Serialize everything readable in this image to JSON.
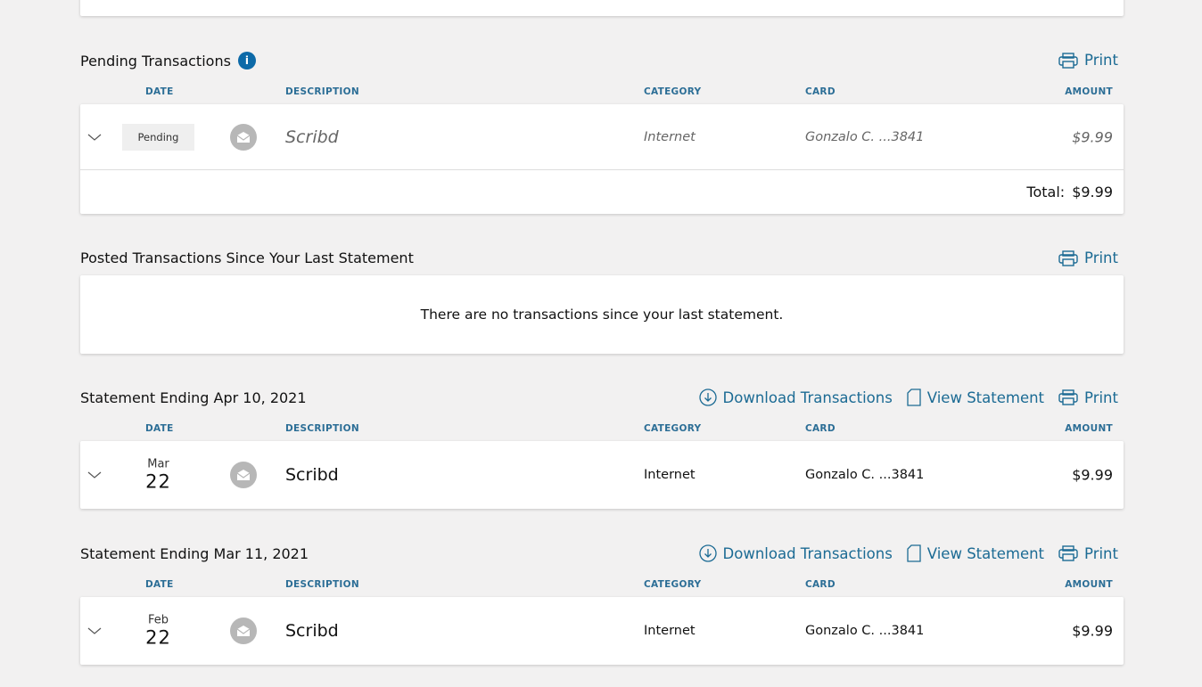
{
  "columns": {
    "date": "DATE",
    "description": "DESCRIPTION",
    "category": "CATEGORY",
    "card": "CARD",
    "amount": "AMOUNT"
  },
  "actions": {
    "print": "Print",
    "download": "Download Transactions",
    "view": "View Statement"
  },
  "pending": {
    "title": "Pending Transactions",
    "info_icon": "i",
    "row": {
      "status": "Pending",
      "description": "Scribd",
      "category": "Internet",
      "card": "Gonzalo C. ...3841",
      "amount": "$9.99"
    },
    "total_label": "Total:",
    "total_value": "$9.99"
  },
  "posted": {
    "title": "Posted Transactions Since Your Last Statement",
    "empty": "There are no transactions since your last statement."
  },
  "statements": [
    {
      "title": "Statement Ending Apr 10, 2021",
      "row": {
        "month": "Mar",
        "day": "22",
        "description": "Scribd",
        "category": "Internet",
        "card": "Gonzalo C. ...3841",
        "amount": "$9.99"
      }
    },
    {
      "title": "Statement Ending Mar 11, 2021",
      "row": {
        "month": "Feb",
        "day": "22",
        "description": "Scribd",
        "category": "Internet",
        "card": "Gonzalo C. ...3841",
        "amount": "$9.99"
      }
    }
  ],
  "colors": {
    "accent": "#1c6b94",
    "info": "#0d6aa8",
    "background": "#f2f1f1"
  }
}
